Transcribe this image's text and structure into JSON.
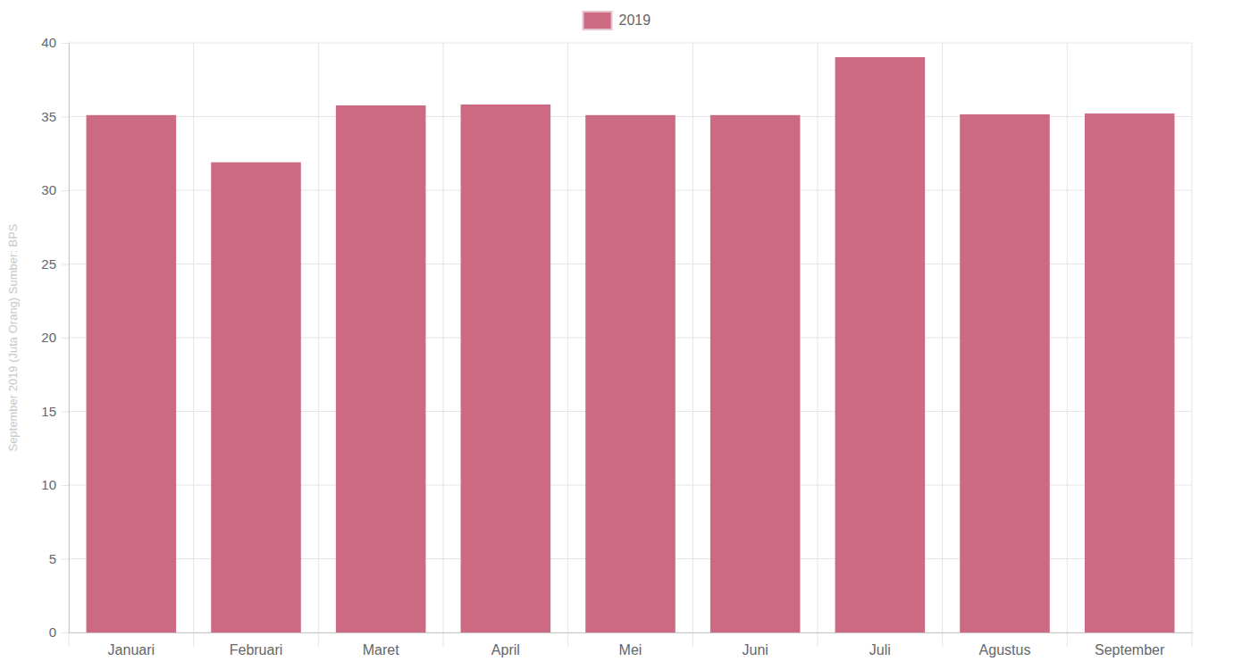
{
  "chart_data": {
    "type": "bar",
    "y_label": "September 2019 (Juta Orang) Sumber: BPS",
    "categories": [
      "Januari",
      "Februari",
      "Maret",
      "April",
      "Mei",
      "Juni",
      "Juli",
      "Agustus",
      "September"
    ],
    "series": [
      {
        "name": "2019",
        "color": "#cc6983",
        "values": [
          35.1,
          31.9,
          35.76,
          35.82,
          35.1,
          35.1,
          39.03,
          35.15,
          35.21
        ]
      }
    ],
    "ylim": [
      0,
      40
    ],
    "yticks": [
      0,
      5,
      10,
      15,
      20,
      25,
      30,
      35,
      40
    ],
    "grid": true,
    "legend": "top"
  }
}
